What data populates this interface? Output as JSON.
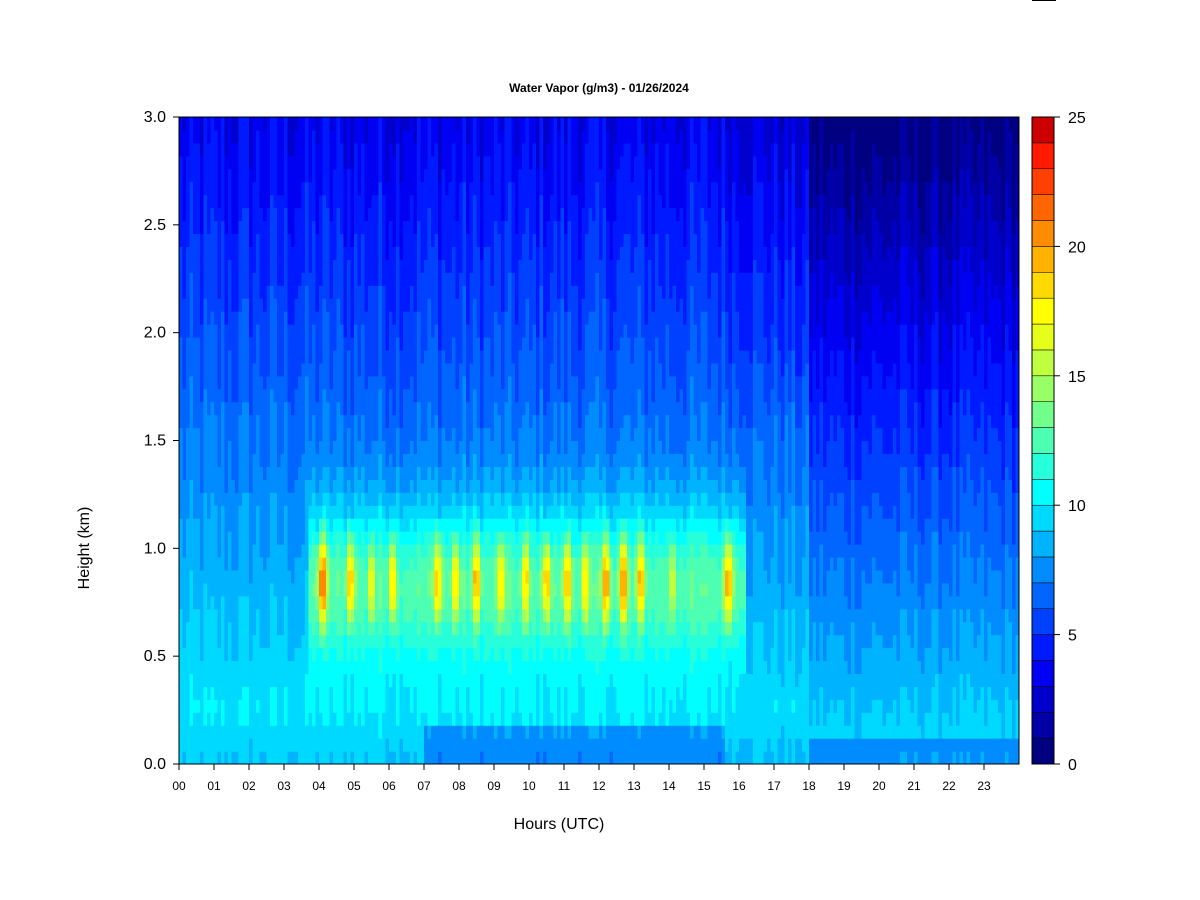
{
  "chart_data": {
    "type": "heatmap",
    "title": "Water Vapor (g/m3) - 01/26/2024",
    "xlabel": "Hours (UTC)",
    "ylabel": "Height (km)",
    "xlim": [
      0,
      24
    ],
    "ylim": [
      0,
      3.0
    ],
    "x_ticks": [
      "00",
      "01",
      "02",
      "03",
      "04",
      "05",
      "06",
      "07",
      "08",
      "09",
      "10",
      "11",
      "12",
      "13",
      "14",
      "15",
      "16",
      "17",
      "18",
      "19",
      "20",
      "21",
      "22",
      "23"
    ],
    "y_ticks": [
      "0.0",
      "0.5",
      "1.0",
      "1.5",
      "2.0",
      "2.5",
      "3.0"
    ],
    "colorbar": {
      "min": 0,
      "max": 25,
      "levels": 25,
      "ticks": [
        "0",
        "5",
        "10",
        "15",
        "20",
        "25"
      ],
      "colors": [
        "#000080",
        "#0000a6",
        "#0000cc",
        "#0000f2",
        "#001aff",
        "#0040ff",
        "#0066ff",
        "#008cff",
        "#00b3ff",
        "#00d9ff",
        "#00ffff",
        "#26ffd9",
        "#4dffb3",
        "#73ff8c",
        "#99ff66",
        "#bfff40",
        "#e6ff1a",
        "#ffff00",
        "#ffd900",
        "#ffb300",
        "#ff8c00",
        "#ff6600",
        "#ff4000",
        "#ff1a00",
        "#cc0000"
      ]
    },
    "moist_layer": {
      "height_km": [
        0.45,
        1.25
      ],
      "peak_height_km": 0.85,
      "peak_value": 23
    },
    "moist_bursts": [
      {
        "hour": 4.1,
        "peak": 23
      },
      {
        "hour": 4.9,
        "peak": 21
      },
      {
        "hour": 5.5,
        "peak": 19
      },
      {
        "hour": 6.1,
        "peak": 20
      },
      {
        "hour": 7.4,
        "peak": 21
      },
      {
        "hour": 7.9,
        "peak": 20
      },
      {
        "hour": 8.5,
        "peak": 21
      },
      {
        "hour": 9.2,
        "peak": 20
      },
      {
        "hour": 9.9,
        "peak": 20
      },
      {
        "hour": 10.5,
        "peak": 21
      },
      {
        "hour": 11.1,
        "peak": 21
      },
      {
        "hour": 11.6,
        "peak": 20
      },
      {
        "hour": 12.2,
        "peak": 22
      },
      {
        "hour": 12.7,
        "peak": 22
      },
      {
        "hour": 13.2,
        "peak": 21
      },
      {
        "hour": 14.1,
        "peak": 18
      },
      {
        "hour": 15.7,
        "peak": 22
      }
    ]
  }
}
